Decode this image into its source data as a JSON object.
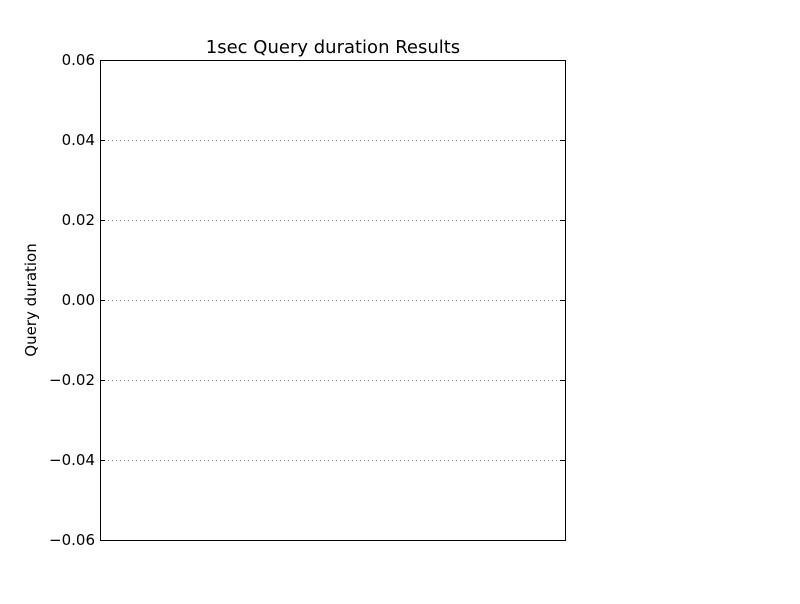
{
  "chart_data": {
    "type": "line",
    "title": "1sec Query duration Results",
    "xlabel": "",
    "ylabel": "Query duration",
    "ylim": [
      -0.06,
      0.06
    ],
    "yticks": [
      0.06,
      0.04,
      0.02,
      0.0,
      -0.02,
      -0.04,
      -0.06
    ],
    "ytick_labels": [
      "0.06",
      "0.04",
      "0.02",
      "0.00",
      "−0.02",
      "−0.04",
      "−0.06"
    ],
    "xticks": [],
    "grid": "y-dotted",
    "series": []
  }
}
